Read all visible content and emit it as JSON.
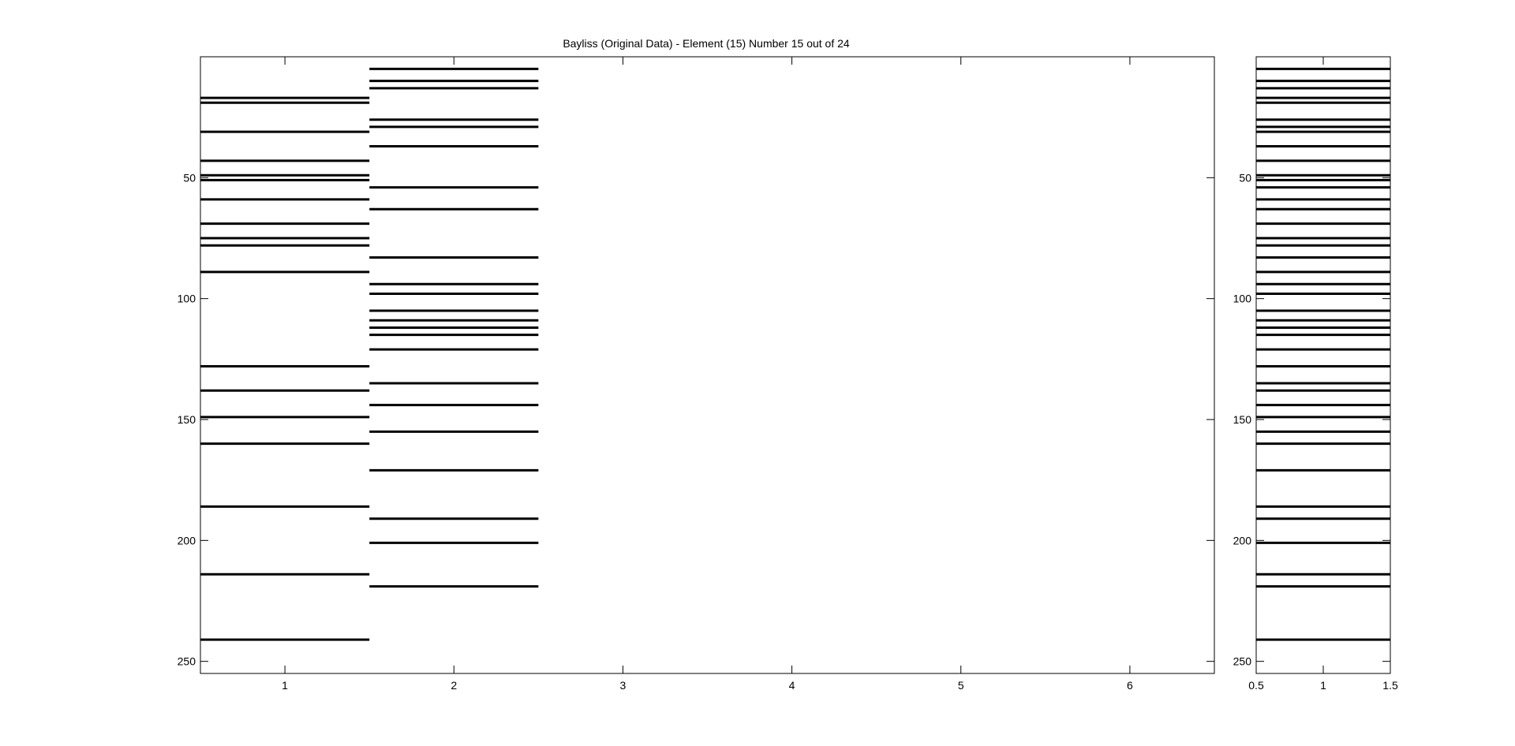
{
  "title": "Bayliss (Original Data) - Element (15) Number 15 out of 24",
  "colors": {
    "background": "#ffffff",
    "line": "#000000"
  },
  "chart_data": [
    {
      "type": "event-raster",
      "xlim": [
        0.5,
        6.5
      ],
      "ylim": [
        0,
        255
      ],
      "y_reversed": true,
      "x_ticks": [
        1,
        2,
        3,
        4,
        5,
        6
      ],
      "x_tick_labels": [
        "1",
        "2",
        "3",
        "4",
        "5",
        "6"
      ],
      "y_ticks": [
        50,
        100,
        150,
        200,
        250
      ],
      "y_tick_labels": [
        "50",
        "100",
        "150",
        "200",
        "250"
      ],
      "columns": [
        {
          "x": 1,
          "events": [
            17,
            19,
            31,
            43,
            49,
            51,
            59,
            69,
            75,
            78,
            89,
            128,
            138,
            149,
            160,
            186,
            214,
            241
          ]
        },
        {
          "x": 2,
          "events": [
            5,
            10,
            13,
            26,
            29,
            37,
            54,
            63,
            83,
            94,
            98,
            105,
            109,
            112,
            115,
            121,
            135,
            144,
            155,
            171,
            191,
            201,
            219
          ]
        }
      ]
    },
    {
      "type": "event-raster",
      "xlim": [
        0.5,
        1.5
      ],
      "ylim": [
        0,
        255
      ],
      "y_reversed": true,
      "x_ticks": [
        0.5,
        1,
        1.5
      ],
      "x_tick_labels": [
        "0.5",
        "1",
        "1.5"
      ],
      "y_ticks": [
        50,
        100,
        150,
        200,
        250
      ],
      "y_tick_labels": [
        "50",
        "100",
        "150",
        "200",
        "250"
      ],
      "columns": [
        {
          "x": 1,
          "events": [
            5,
            10,
            13,
            17,
            19,
            26,
            29,
            31,
            37,
            43,
            49,
            51,
            54,
            59,
            63,
            69,
            75,
            78,
            83,
            89,
            94,
            98,
            105,
            109,
            112,
            115,
            121,
            128,
            135,
            138,
            144,
            149,
            155,
            160,
            171,
            186,
            191,
            201,
            214,
            219,
            241
          ]
        }
      ]
    }
  ]
}
